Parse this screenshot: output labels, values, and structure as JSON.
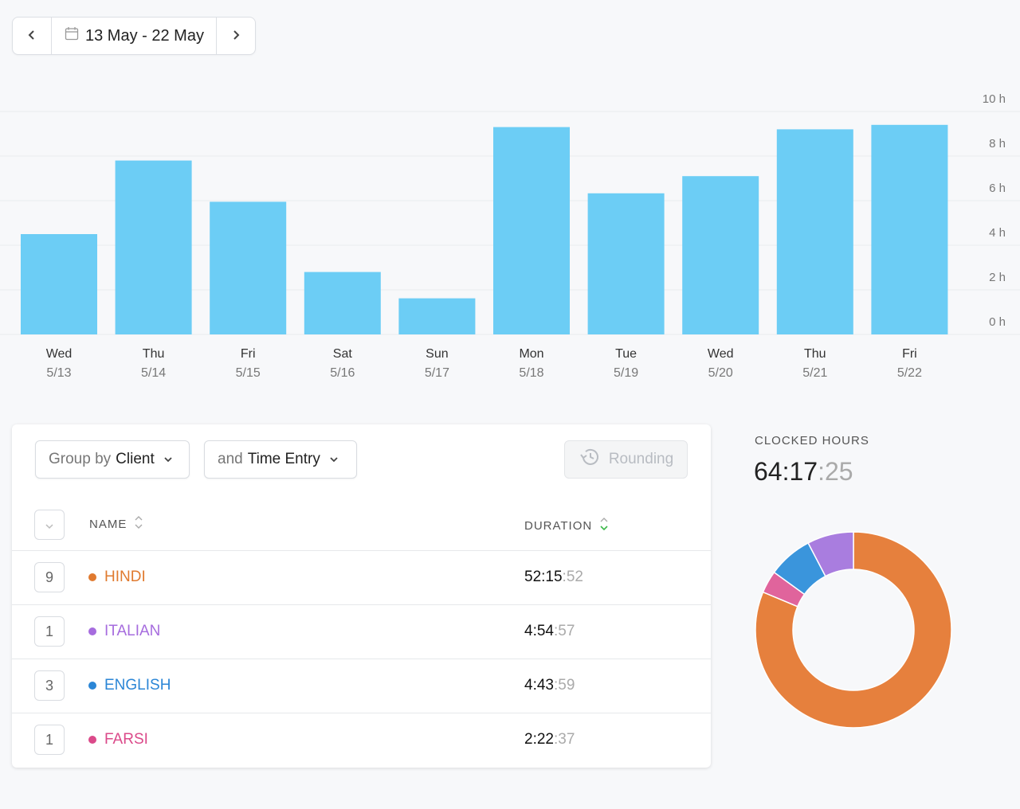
{
  "date_range": {
    "label": "13 May - 22 May",
    "prev_icon": "chevron-left-icon",
    "next_icon": "chevron-right-icon"
  },
  "chart_data": {
    "type": "bar",
    "categories": [
      "Wed",
      "Thu",
      "Fri",
      "Sat",
      "Sun",
      "Mon",
      "Tue",
      "Wed",
      "Thu",
      "Fri"
    ],
    "dates": [
      "5/13",
      "5/14",
      "5/15",
      "5/16",
      "5/17",
      "5/18",
      "5/19",
      "5/20",
      "5/21",
      "5/22"
    ],
    "values": [
      4.5,
      7.8,
      5.95,
      2.8,
      1.62,
      9.3,
      6.33,
      7.1,
      9.2,
      9.4
    ],
    "y_ticks": [
      "0 h",
      "2 h",
      "4 h",
      "6 h",
      "8 h",
      "10 h"
    ],
    "ylim": [
      0,
      10
    ],
    "y_unit": "h",
    "bar_color": "#6ccdf5",
    "grid": true
  },
  "controls": {
    "group_prefix": "Group by",
    "group_value": "Client",
    "then_prefix": "and",
    "then_value": "Time Entry",
    "rounding_label": "Rounding"
  },
  "table": {
    "header_name": "NAME",
    "header_duration": "DURATION",
    "rows": [
      {
        "count": "9",
        "name": "HINDI",
        "color": "#e07a2f",
        "dur_main": "52:15",
        "dur_sec": ":52"
      },
      {
        "count": "1",
        "name": "ITALIAN",
        "color": "#a66cde",
        "dur_main": "4:54",
        "dur_sec": ":57"
      },
      {
        "count": "3",
        "name": "ENGLISH",
        "color": "#2b86d6",
        "dur_main": "4:43",
        "dur_sec": ":59"
      },
      {
        "count": "1",
        "name": "FARSI",
        "color": "#db4a8a",
        "dur_main": "2:22",
        "dur_sec": ":37"
      }
    ]
  },
  "clocked": {
    "label": "CLOCKED HOURS",
    "main": "64:17",
    "sec": ":25"
  },
  "donut_data": {
    "slices": [
      {
        "name": "HINDI",
        "value": 188152,
        "color": "#e6803d"
      },
      {
        "name": "FARSI",
        "value": 8557,
        "color": "#e0649c"
      },
      {
        "name": "ENGLISH",
        "value": 17039,
        "color": "#3a95dc"
      },
      {
        "name": "ITALIAN",
        "value": 17697,
        "color": "#a97ddf"
      }
    ]
  }
}
